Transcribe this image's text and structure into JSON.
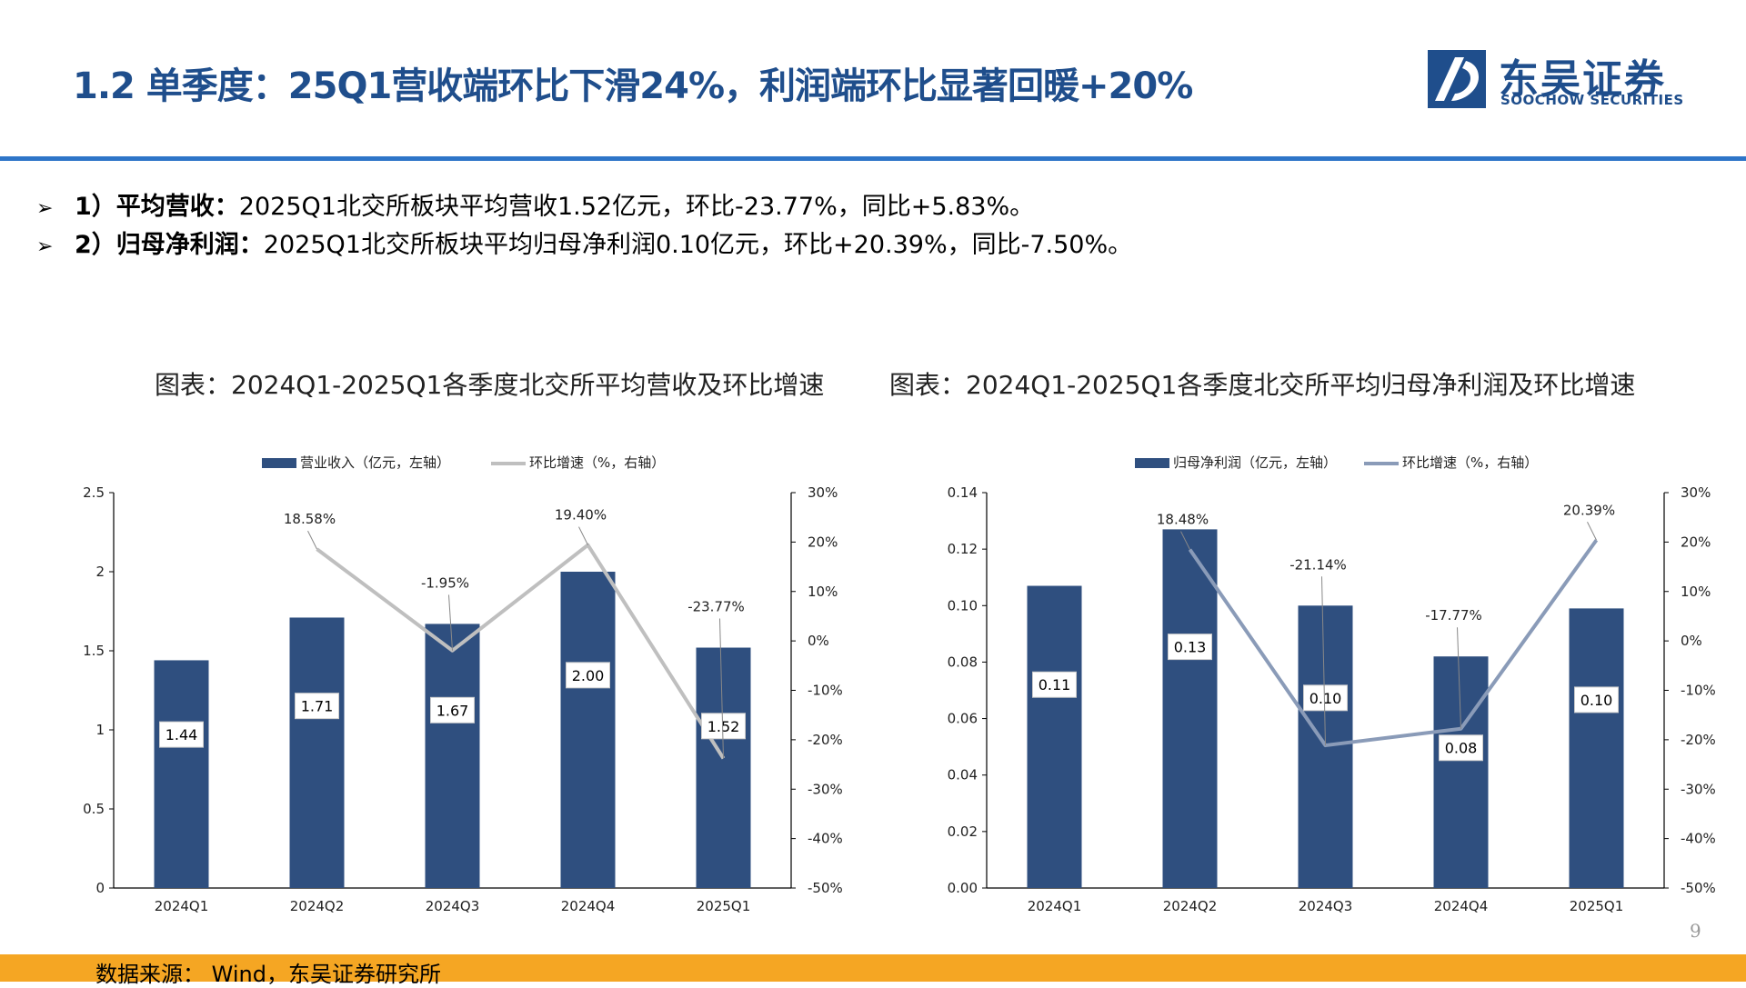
{
  "title": "1.2 单季度：25Q1营收端环比下滑24%，利润端环比显著回暖+20%",
  "logo": {
    "name": "东吴证券",
    "subtitle": "SOOCHOW SECURITIES",
    "brand_color": "#1f4e8c"
  },
  "bullets": [
    {
      "label": "1）平均营收：",
      "text": "2025Q1北交所板块平均营收1.52亿元，环比-23.77%，同比+5.83%。"
    },
    {
      "label": "2）归母净利润：",
      "text": "2025Q1北交所板块平均归母净利润0.10亿元，环比+20.39%，同比-7.50%。"
    }
  ],
  "page_number": "9",
  "footer_text": "数据来源： Wind，东吴证券研究所",
  "chart_data": [
    {
      "type": "bar",
      "title": "图表：2024Q1-2025Q1各季度北交所平均营收及环比增速",
      "categories": [
        "2024Q1",
        "2024Q2",
        "2024Q3",
        "2024Q4",
        "2025Q1"
      ],
      "series": [
        {
          "name": "营业收入（亿元，左轴）",
          "type": "bar",
          "axis": "left",
          "color": "#2f4f7f",
          "values": [
            1.44,
            1.71,
            1.67,
            2.0,
            1.52
          ],
          "labels": [
            "1.44",
            "1.71",
            "1.67",
            "2.00",
            "1.52"
          ]
        },
        {
          "name": "环比增速（%，右轴）",
          "type": "line",
          "axis": "right",
          "color": "#bfbfbf",
          "values": [
            null,
            18.58,
            -1.95,
            19.4,
            -23.77
          ],
          "labels": [
            "",
            "18.58%",
            "-1.95%",
            "19.40%",
            "-23.77%"
          ]
        }
      ],
      "y_left": {
        "min": 0,
        "max": 2.5,
        "ticks": [
          "0",
          "0.5",
          "1",
          "1.5",
          "2",
          "2.5"
        ]
      },
      "y_right": {
        "min": -50,
        "max": 30,
        "ticks": [
          "-50%",
          "-40%",
          "-30%",
          "-20%",
          "-10%",
          "0%",
          "10%",
          "20%",
          "30%"
        ]
      },
      "legend": "top-center"
    },
    {
      "type": "bar",
      "title": "图表：2024Q1-2025Q1各季度北交所平均归母净利润及环比增速",
      "categories": [
        "2024Q1",
        "2024Q2",
        "2024Q3",
        "2024Q4",
        "2025Q1"
      ],
      "series": [
        {
          "name": "归母净利润（亿元，左轴）",
          "type": "bar",
          "axis": "left",
          "color": "#2f4f7f",
          "values": [
            0.107,
            0.127,
            0.1,
            0.082,
            0.099
          ],
          "labels": [
            "0.11",
            "0.13",
            "0.10",
            "0.08",
            "0.10"
          ]
        },
        {
          "name": "环比增速（%，右轴）",
          "type": "line",
          "axis": "right",
          "color": "#8a9bb8",
          "values": [
            null,
            18.48,
            -21.14,
            -17.77,
            20.39
          ],
          "labels": [
            "",
            "18.48%",
            "-21.14%",
            "-17.77%",
            "20.39%"
          ]
        }
      ],
      "y_left": {
        "min": 0,
        "max": 0.14,
        "ticks": [
          "0.00",
          "0.02",
          "0.04",
          "0.06",
          "0.08",
          "0.10",
          "0.12",
          "0.14"
        ]
      },
      "y_right": {
        "min": -50,
        "max": 30,
        "ticks": [
          "-50%",
          "-40%",
          "-30%",
          "-20%",
          "-10%",
          "0%",
          "10%",
          "20%",
          "30%"
        ]
      },
      "legend": "top-center"
    }
  ]
}
